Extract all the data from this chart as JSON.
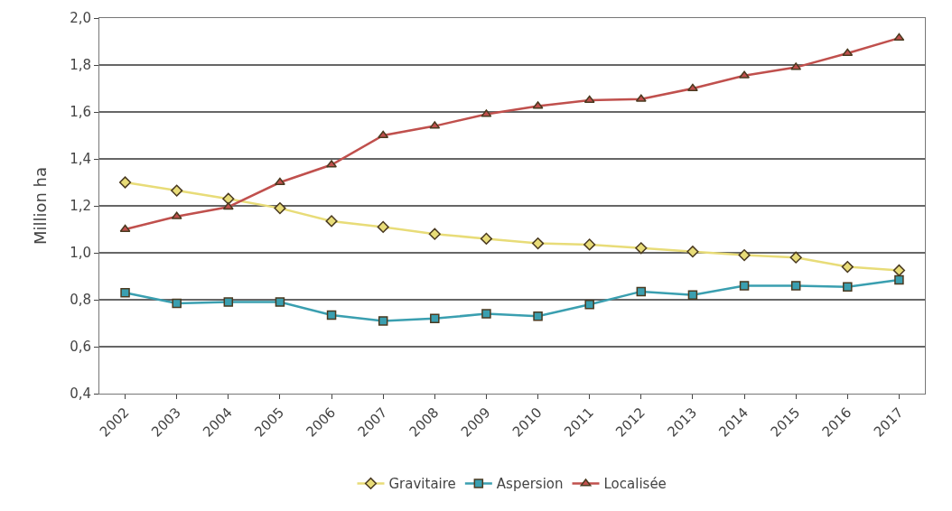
{
  "chart_data": {
    "type": "line",
    "ylabel": "Million ha",
    "categories": [
      "2002",
      "2003",
      "2004",
      "2005",
      "2006",
      "2007",
      "2008",
      "2009",
      "2010",
      "2011",
      "2012",
      "2013",
      "2014",
      "2015",
      "2016",
      "2017"
    ],
    "series": [
      {
        "name": "Gravitaire",
        "color": "#e8dc78",
        "marker": "diamond",
        "values": [
          1.3,
          1.265,
          1.23,
          1.19,
          1.135,
          1.11,
          1.08,
          1.06,
          1.04,
          1.035,
          1.02,
          1.005,
          0.99,
          0.98,
          0.94,
          0.925
        ]
      },
      {
        "name": "Aspersion",
        "color": "#3a9fb0",
        "marker": "square",
        "values": [
          0.83,
          0.785,
          0.79,
          0.79,
          0.735,
          0.71,
          0.72,
          0.74,
          0.73,
          0.78,
          0.835,
          0.82,
          0.86,
          0.86,
          0.855,
          0.885
        ]
      },
      {
        "name": "Localisée",
        "color": "#c0504d",
        "marker": "triangle",
        "values": [
          1.1,
          1.155,
          1.195,
          1.3,
          1.375,
          1.5,
          1.54,
          1.59,
          1.625,
          1.65,
          1.655,
          1.7,
          1.755,
          1.79,
          1.85,
          1.915
        ]
      }
    ],
    "ylim": [
      0.4,
      2.0
    ],
    "yticks": [
      {
        "value": 0.4,
        "label": "0,4"
      },
      {
        "value": 0.6,
        "label": "0,6"
      },
      {
        "value": 0.8,
        "label": "0,8"
      },
      {
        "value": 1.0,
        "label": "1,0"
      },
      {
        "value": 1.2,
        "label": "1,2"
      },
      {
        "value": 1.4,
        "label": "1,4"
      },
      {
        "value": 1.6,
        "label": "1,6"
      },
      {
        "value": 1.8,
        "label": "1,8"
      },
      {
        "value": 2.0,
        "label": "2,0"
      }
    ],
    "grid": "y",
    "legend": "bottom",
    "line_style": "solid"
  }
}
